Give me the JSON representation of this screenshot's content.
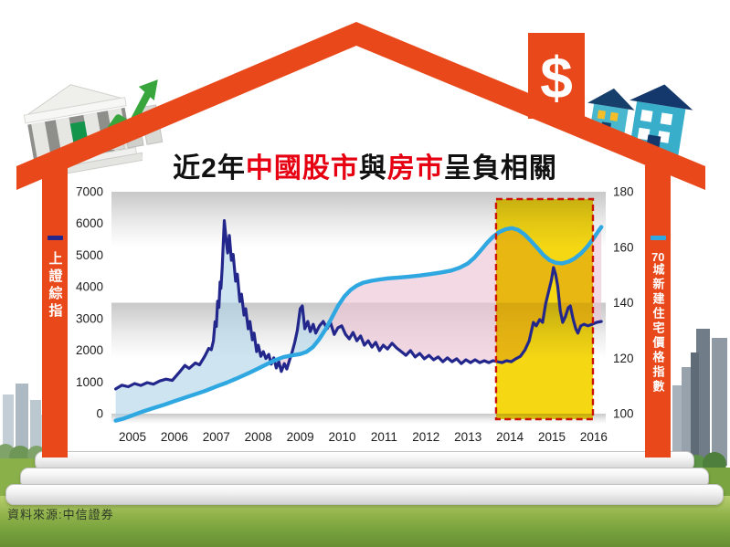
{
  "title": {
    "prefix": "近2年",
    "highlight1": "中國股市",
    "middle": "與",
    "highlight2": "房市",
    "suffix": "呈負相關"
  },
  "source": "資料來源:中信證券",
  "left_legend": {
    "label": "上證綜指",
    "swatch_color": "#23278c"
  },
  "right_legend": {
    "label_num": "70",
    "label_text": "城新建住宅價格指數",
    "swatch_color": "#2fa8e1"
  },
  "icons": {
    "dollar_sign": "$",
    "bank_icon": "classical-bank-building",
    "growth_chart_icon": "rising-bars-green-arrow",
    "houses_icon": "two-teal-houses"
  },
  "colors": {
    "frame_orange": "#e8481a",
    "title_red": "#e60012",
    "stock_navy": "#23278c",
    "housing_cyan": "#2fa8e1",
    "highlight_yellow": "#f5d400",
    "highlight_border_red": "#cc1405",
    "band_gray": "#c8c8c8",
    "fill_blue": "rgba(173,210,231,0.6)",
    "fill_pink": "rgba(236,196,214,0.65)"
  },
  "chart_data": {
    "type": "line",
    "title": "近2年中國股市與房市呈負相關",
    "xlabel": "",
    "ylabel_left": "上證綜指",
    "ylabel_right": "70城新建住宅價格指數",
    "grid": "alternating horizontal bands",
    "legend_position": "vertical labels on house side walls",
    "x_axis": {
      "years": [
        "2005",
        "2006",
        "2007",
        "2008",
        "2009",
        "2010",
        "2011",
        "2012",
        "2013",
        "2014",
        "2015",
        "2016"
      ]
    },
    "left_axis": {
      "min": 0,
      "max": 7000,
      "ticks": [
        7000,
        6000,
        5000,
        4000,
        3000,
        2000,
        1000,
        0
      ]
    },
    "right_axis": {
      "min": 100,
      "max": 180,
      "ticks": [
        180,
        160,
        140,
        120,
        100
      ]
    },
    "highlight_region": {
      "x_start": 2013.67,
      "x_end": 2015.98,
      "label": "近2年",
      "color": "#f5d400",
      "border": "#cc1405"
    },
    "series": [
      {
        "name": "上證綜指",
        "axis": "left",
        "color": "#23278c",
        "points": [
          [
            2004.6,
            780
          ],
          [
            2004.75,
            900
          ],
          [
            2004.9,
            850
          ],
          [
            2005.05,
            950
          ],
          [
            2005.2,
            890
          ],
          [
            2005.35,
            980
          ],
          [
            2005.5,
            930
          ],
          [
            2005.65,
            1030
          ],
          [
            2005.8,
            1090
          ],
          [
            2005.95,
            1050
          ],
          [
            2006.1,
            1280
          ],
          [
            2006.25,
            1520
          ],
          [
            2006.35,
            1430
          ],
          [
            2006.5,
            1600
          ],
          [
            2006.6,
            1540
          ],
          [
            2006.72,
            1800
          ],
          [
            2006.82,
            2060
          ],
          [
            2006.88,
            2020
          ],
          [
            2006.93,
            2300
          ],
          [
            2006.97,
            2900
          ],
          [
            2007.0,
            2750
          ],
          [
            2007.03,
            3550
          ],
          [
            2007.06,
            3350
          ],
          [
            2007.09,
            4150
          ],
          [
            2007.11,
            3950
          ],
          [
            2007.14,
            4600
          ],
          [
            2007.16,
            5200
          ],
          [
            2007.19,
            6090
          ],
          [
            2007.24,
            5400
          ],
          [
            2007.27,
            5070
          ],
          [
            2007.31,
            5620
          ],
          [
            2007.36,
            4840
          ],
          [
            2007.4,
            5020
          ],
          [
            2007.46,
            4180
          ],
          [
            2007.5,
            4400
          ],
          [
            2007.56,
            3540
          ],
          [
            2007.6,
            3770
          ],
          [
            2007.66,
            3110
          ],
          [
            2007.7,
            3310
          ],
          [
            2007.76,
            2680
          ],
          [
            2007.8,
            2910
          ],
          [
            2007.86,
            2330
          ],
          [
            2007.9,
            2540
          ],
          [
            2007.96,
            1960
          ],
          [
            2008.0,
            2160
          ],
          [
            2008.06,
            1810
          ],
          [
            2008.12,
            1960
          ],
          [
            2008.18,
            1740
          ],
          [
            2008.25,
            1870
          ],
          [
            2008.31,
            1560
          ],
          [
            2008.37,
            1760
          ],
          [
            2008.43,
            1440
          ],
          [
            2008.49,
            1640
          ],
          [
            2008.55,
            1330
          ],
          [
            2008.62,
            1580
          ],
          [
            2008.68,
            1410
          ],
          [
            2008.74,
            1670
          ],
          [
            2008.81,
            1960
          ],
          [
            2008.87,
            2250
          ],
          [
            2008.93,
            2620
          ],
          [
            2009.0,
            3310
          ],
          [
            2009.05,
            3400
          ],
          [
            2009.11,
            2680
          ],
          [
            2009.18,
            2910
          ],
          [
            2009.24,
            2590
          ],
          [
            2009.31,
            2820
          ],
          [
            2009.37,
            2540
          ],
          [
            2009.46,
            2770
          ],
          [
            2009.55,
            2910
          ],
          [
            2009.64,
            2680
          ],
          [
            2009.72,
            2880
          ],
          [
            2009.81,
            2500
          ],
          [
            2009.9,
            2710
          ],
          [
            2009.99,
            2770
          ],
          [
            2010.08,
            2500
          ],
          [
            2010.17,
            2360
          ],
          [
            2010.26,
            2560
          ],
          [
            2010.35,
            2300
          ],
          [
            2010.44,
            2450
          ],
          [
            2010.53,
            2160
          ],
          [
            2010.62,
            2300
          ],
          [
            2010.71,
            2100
          ],
          [
            2010.8,
            2250
          ],
          [
            2010.89,
            1990
          ],
          [
            2010.98,
            2160
          ],
          [
            2011.08,
            2040
          ],
          [
            2011.19,
            2220
          ],
          [
            2011.3,
            2070
          ],
          [
            2011.41,
            1960
          ],
          [
            2011.52,
            1840
          ],
          [
            2011.63,
            1990
          ],
          [
            2011.74,
            1790
          ],
          [
            2011.85,
            1900
          ],
          [
            2011.96,
            1730
          ],
          [
            2012.07,
            1840
          ],
          [
            2012.18,
            1700
          ],
          [
            2012.29,
            1790
          ],
          [
            2012.4,
            1640
          ],
          [
            2012.51,
            1760
          ],
          [
            2012.62,
            1640
          ],
          [
            2012.73,
            1730
          ],
          [
            2012.84,
            1580
          ],
          [
            2012.95,
            1700
          ],
          [
            2013.06,
            1610
          ],
          [
            2013.17,
            1700
          ],
          [
            2013.28,
            1610
          ],
          [
            2013.39,
            1670
          ],
          [
            2013.5,
            1610
          ],
          [
            2013.6,
            1670
          ],
          [
            2013.7,
            1640
          ],
          [
            2013.81,
            1610
          ],
          [
            2013.92,
            1670
          ],
          [
            2014.03,
            1640
          ],
          [
            2014.14,
            1730
          ],
          [
            2014.25,
            1810
          ],
          [
            2014.36,
            2010
          ],
          [
            2014.46,
            2300
          ],
          [
            2014.56,
            2880
          ],
          [
            2014.63,
            2770
          ],
          [
            2014.71,
            2970
          ],
          [
            2014.78,
            2880
          ],
          [
            2014.85,
            3450
          ],
          [
            2014.92,
            3830
          ],
          [
            2014.99,
            4210
          ],
          [
            2015.04,
            4610
          ],
          [
            2015.09,
            4400
          ],
          [
            2015.14,
            4030
          ],
          [
            2015.2,
            3250
          ],
          [
            2015.26,
            2880
          ],
          [
            2015.32,
            3050
          ],
          [
            2015.39,
            3340
          ],
          [
            2015.44,
            3400
          ],
          [
            2015.51,
            2970
          ],
          [
            2015.57,
            2680
          ],
          [
            2015.62,
            2540
          ],
          [
            2015.69,
            2770
          ],
          [
            2015.77,
            2820
          ],
          [
            2015.86,
            2770
          ],
          [
            2015.96,
            2820
          ],
          [
            2016.07,
            2880
          ],
          [
            2016.18,
            2910
          ]
        ]
      },
      {
        "name": "70城新建住宅價格指數",
        "axis": "right",
        "color": "#2fa8e1",
        "points": [
          [
            2004.6,
            97.5
          ],
          [
            2004.8,
            98.3
          ],
          [
            2005.0,
            99.4
          ],
          [
            2005.25,
            100.8
          ],
          [
            2005.5,
            102.0
          ],
          [
            2005.75,
            103.2
          ],
          [
            2006.0,
            104.5
          ],
          [
            2006.25,
            105.8
          ],
          [
            2006.5,
            107.0
          ],
          [
            2006.75,
            108.3
          ],
          [
            2007.0,
            109.8
          ],
          [
            2007.25,
            111.2
          ],
          [
            2007.5,
            112.8
          ],
          [
            2007.75,
            114.5
          ],
          [
            2008.0,
            116.3
          ],
          [
            2008.2,
            117.8
          ],
          [
            2008.4,
            119.3
          ],
          [
            2008.6,
            120.4
          ],
          [
            2008.8,
            121.0
          ],
          [
            2009.0,
            121.5
          ],
          [
            2009.15,
            122.3
          ],
          [
            2009.3,
            124.0
          ],
          [
            2009.45,
            126.8
          ],
          [
            2009.6,
            130.3
          ],
          [
            2009.75,
            134.5
          ],
          [
            2009.9,
            138.8
          ],
          [
            2010.05,
            142.2
          ],
          [
            2010.2,
            144.6
          ],
          [
            2010.35,
            146.2
          ],
          [
            2010.5,
            147.2
          ],
          [
            2010.7,
            147.9
          ],
          [
            2010.9,
            148.4
          ],
          [
            2011.1,
            148.8
          ],
          [
            2011.35,
            149.1
          ],
          [
            2011.6,
            149.4
          ],
          [
            2011.85,
            149.8
          ],
          [
            2012.1,
            150.3
          ],
          [
            2012.35,
            150.9
          ],
          [
            2012.6,
            151.6
          ],
          [
            2012.8,
            152.6
          ],
          [
            2013.0,
            154.2
          ],
          [
            2013.15,
            156.2
          ],
          [
            2013.3,
            158.8
          ],
          [
            2013.45,
            161.5
          ],
          [
            2013.6,
            163.8
          ],
          [
            2013.75,
            165.5
          ],
          [
            2013.9,
            166.5
          ],
          [
            2014.05,
            166.9
          ],
          [
            2014.2,
            166.2
          ],
          [
            2014.35,
            164.6
          ],
          [
            2014.5,
            162.3
          ],
          [
            2014.65,
            159.8
          ],
          [
            2014.8,
            157.2
          ],
          [
            2014.95,
            155.3
          ],
          [
            2015.1,
            154.4
          ],
          [
            2015.25,
            154.2
          ],
          [
            2015.4,
            154.8
          ],
          [
            2015.55,
            156.0
          ],
          [
            2015.7,
            157.8
          ],
          [
            2015.85,
            160.3
          ],
          [
            2016.0,
            163.3
          ],
          [
            2016.1,
            165.6
          ],
          [
            2016.18,
            167.3
          ]
        ]
      }
    ]
  }
}
